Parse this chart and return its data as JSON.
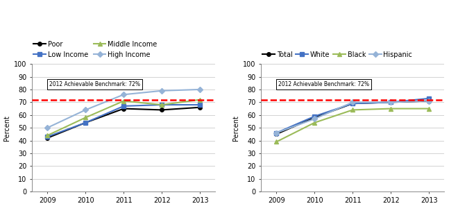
{
  "years": [
    2009,
    2010,
    2011,
    2012,
    2013
  ],
  "left_chart": {
    "series_order": [
      "Poor",
      "Low Income",
      "Middle Income",
      "High Income"
    ],
    "series": {
      "Poor": [
        42,
        54,
        65,
        64,
        66
      ],
      "Low Income": [
        43,
        54,
        67,
        68,
        68
      ],
      "Middle Income": [
        44,
        58,
        71,
        68,
        72
      ],
      "High Income": [
        50,
        64,
        76,
        79,
        80
      ]
    },
    "colors": {
      "Poor": "#000000",
      "Low Income": "#4472C4",
      "Middle Income": "#9BBB59",
      "High Income": "#95B3D7"
    },
    "markers": {
      "Poor": "o",
      "Low Income": "s",
      "Middle Income": "^",
      "High Income": "D"
    },
    "legend_ncol": 2
  },
  "right_chart": {
    "series_order": [
      "Total",
      "White",
      "Black",
      "Hispanic"
    ],
    "series": {
      "Total": [
        45,
        58,
        69,
        70,
        71
      ],
      "White": [
        46,
        59,
        69,
        70,
        73
      ],
      "Black": [
        39,
        54,
        64,
        65,
        65
      ],
      "Hispanic": [
        46,
        57,
        70,
        70,
        71
      ]
    },
    "colors": {
      "Total": "#000000",
      "White": "#4472C4",
      "Black": "#9BBB59",
      "Hispanic": "#95B3D7"
    },
    "markers": {
      "Total": "o",
      "White": "s",
      "Black": "^",
      "Hispanic": "D"
    },
    "legend_ncol": 4
  },
  "benchmark": 72,
  "benchmark_label": "2012 Achievable Benchmark: 72%",
  "ylabel": "Percent",
  "ylim": [
    0,
    100
  ],
  "yticks": [
    0,
    10,
    20,
    30,
    40,
    50,
    60,
    70,
    80,
    90,
    100
  ],
  "background_color": "#ffffff",
  "grid_color": "#c0c0c0",
  "benchmark_color": "#FF0000",
  "line_width": 1.5,
  "marker_size": 4,
  "font_size": 7,
  "legend_font_size": 7
}
